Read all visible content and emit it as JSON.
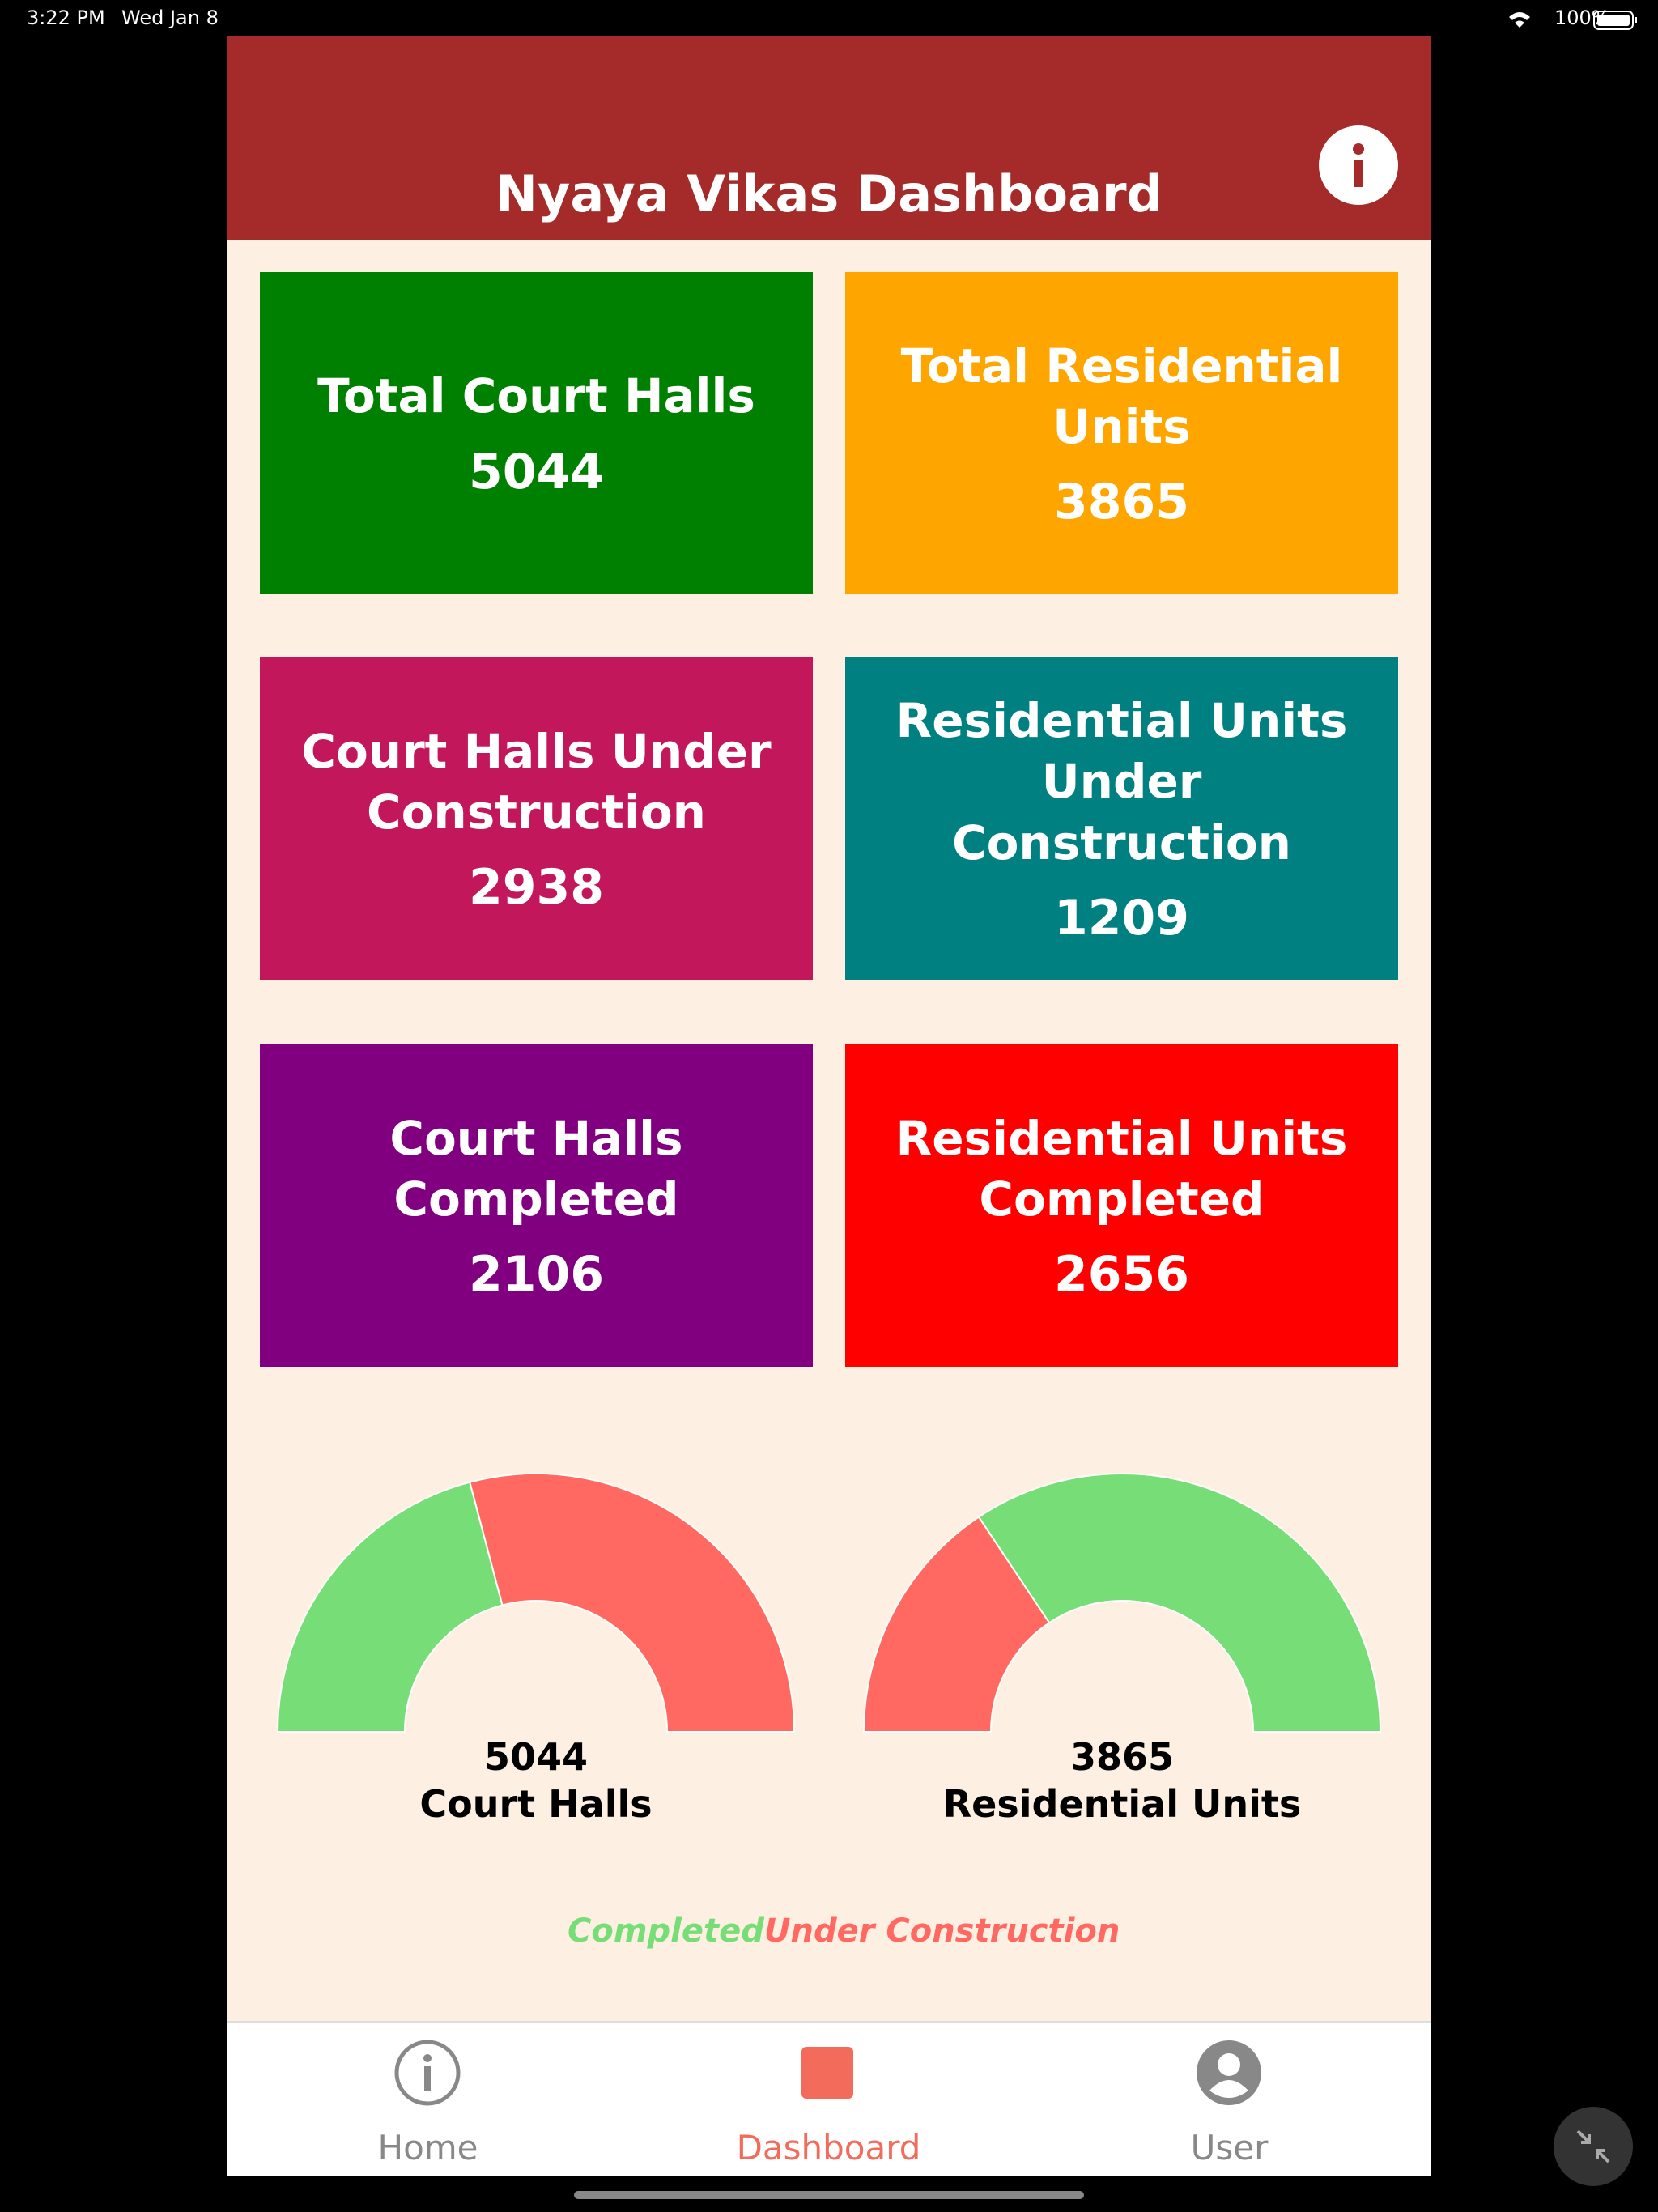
{
  "status_bar": {
    "time": "3:22 PM",
    "date": "Wed Jan 8",
    "battery": "100%"
  },
  "header": {
    "title": "Nyaya Vikas Dashboard"
  },
  "cards": [
    {
      "label": "Total Court Halls",
      "value": 5044,
      "color": "#008000"
    },
    {
      "label": "Total Residential Units",
      "value": 3865,
      "color": "#ffa500"
    },
    {
      "label": "Court Halls Under Construction",
      "value": 2938,
      "color": "#c2185b"
    },
    {
      "label": "Residential Units Under Construction",
      "value": 1209,
      "color": "#008080"
    },
    {
      "label": "Court Halls Completed",
      "value": 2106,
      "color": "#800080"
    },
    {
      "label": "Residential Units Completed",
      "value": 2656,
      "color": "#ff0000"
    }
  ],
  "gauges": [
    {
      "total": "5044",
      "label": "Court Halls"
    },
    {
      "total": "3865",
      "label": "Residential Units"
    }
  ],
  "legend": {
    "completed": {
      "name": "Completed",
      "color": "#77dd77"
    },
    "under_construction": {
      "name": "Under Construction",
      "color": "#ff6961"
    }
  },
  "tabs": [
    "Home",
    "Dashboard",
    "User"
  ]
}
